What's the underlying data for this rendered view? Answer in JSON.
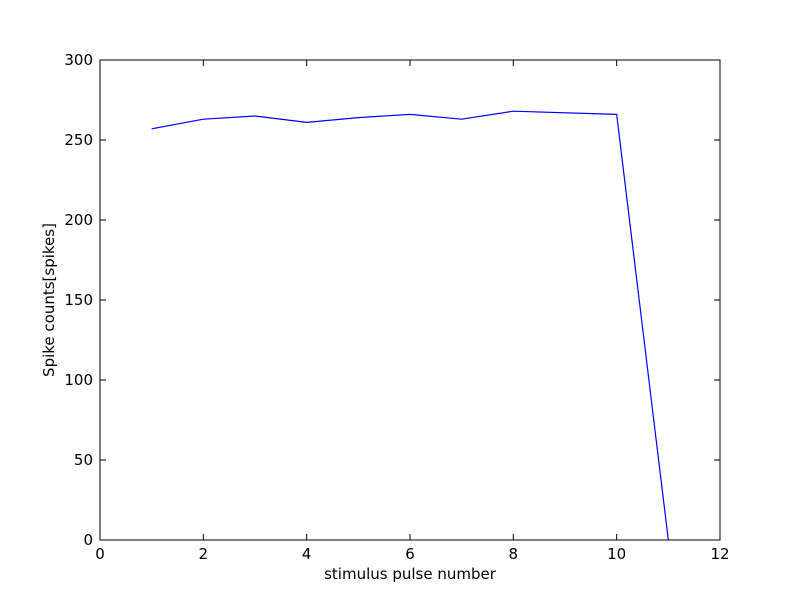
{
  "chart_data": {
    "type": "line",
    "title": "",
    "xlabel": "stimulus pulse number",
    "ylabel": "Spike counts[spikes]",
    "xlim": [
      0,
      12
    ],
    "ylim": [
      0,
      300
    ],
    "xticks": [
      0,
      2,
      4,
      6,
      8,
      10,
      12
    ],
    "yticks": [
      0,
      50,
      100,
      150,
      200,
      250,
      300
    ],
    "grid": false,
    "legend": "none",
    "series": [
      {
        "color": "#0000ff",
        "x": [
          1,
          2,
          3,
          4,
          5,
          6,
          7,
          8,
          10,
          11
        ],
        "y": [
          257,
          263,
          265,
          261,
          264,
          266,
          263,
          268,
          266,
          0
        ]
      }
    ]
  }
}
